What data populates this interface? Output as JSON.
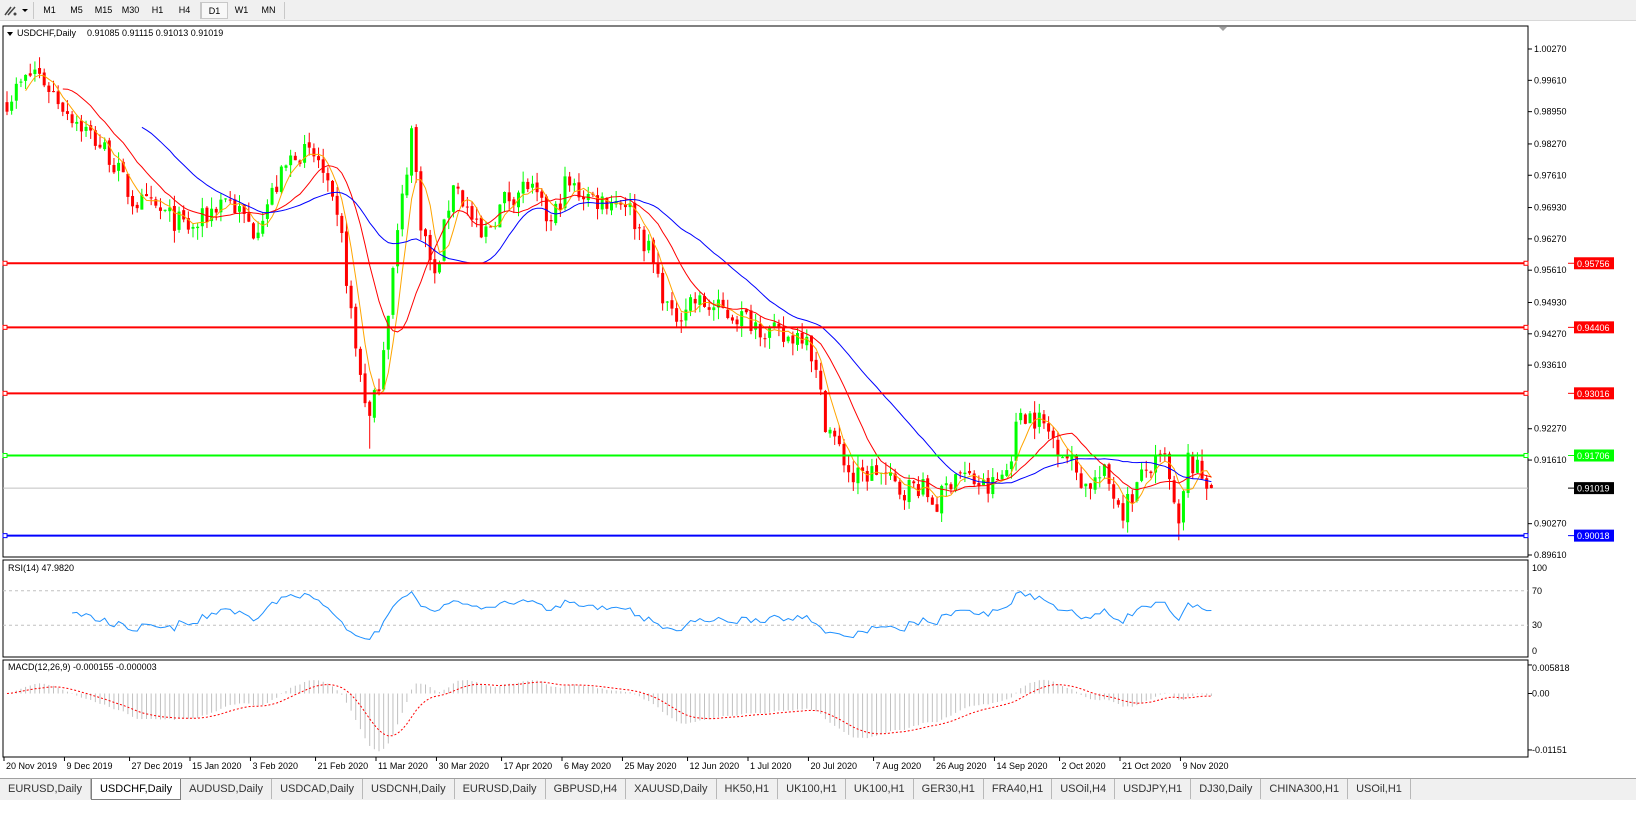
{
  "toolbar": {
    "tools": [
      {
        "icon": "draw-tool-icon"
      },
      {
        "icon": "chevron-down-icon"
      }
    ],
    "timeframes": [
      "M1",
      "M5",
      "M15",
      "M30",
      "H1",
      "H4",
      "D1",
      "W1",
      "MN"
    ],
    "active_timeframe": "D1"
  },
  "chart": {
    "symbol_title": "USDCHF,Daily",
    "ohlc": "0.91085 0.91115 0.91013 0.91019",
    "current_price": "0.91019",
    "price_ticks": [
      "1.00270",
      "0.99610",
      "0.98950",
      "0.98270",
      "0.97610",
      "0.96930",
      "0.96270",
      "0.95610",
      "0.94930",
      "0.94270",
      "0.93610",
      "0.92270",
      "0.91610",
      "0.90270",
      "0.89610"
    ],
    "hlines": [
      {
        "price": "0.95756",
        "color": "#ff0000"
      },
      {
        "price": "0.94406",
        "color": "#ff0000"
      },
      {
        "price": "0.93016",
        "color": "#ff0000"
      },
      {
        "price": "0.91706",
        "color": "#00ff00"
      },
      {
        "price": "0.90018",
        "color": "#0000ff"
      }
    ],
    "colors": {
      "bull": "#00ff00",
      "bear": "#ff0000",
      "ma_fast": "#ffa500",
      "ma_mid": "#ff0000",
      "ma_slow": "#0000ff",
      "rsi": "#1e90ff",
      "macd_signal": "#ff0000",
      "macd_hist": "#c0c0c0"
    },
    "date_labels": [
      "20 Nov 2019",
      "9 Dec 2019",
      "27 Dec 2019",
      "15 Jan 2020",
      "3 Feb 2020",
      "21 Feb 2020",
      "11 Mar 2020",
      "30 Mar 2020",
      "17 Apr 2020",
      "6 May 2020",
      "25 May 2020",
      "12 Jun 2020",
      "1 Jul 2020",
      "20 Jul 2020",
      "7 Aug 2020",
      "26 Aug 2020",
      "14 Sep 2020",
      "2 Oct 2020",
      "21 Oct 2020",
      "9 Nov 2020"
    ]
  },
  "rsi": {
    "label": "RSI(14) 47.9820",
    "ticks": [
      "100",
      "70",
      "30",
      "0"
    ]
  },
  "macd": {
    "label": "MACD(12,26,9) -0.000155 -0.000003",
    "ticks": [
      "0.005818",
      "0.00",
      "-0.01151"
    ]
  },
  "chart_data": {
    "type": "candlestick",
    "symbol": "USDCHF",
    "timeframe": "Daily",
    "last_candle": {
      "open": 0.91085,
      "high": 0.91115,
      "low": 0.91013,
      "close": 0.91019
    },
    "ylim": [
      0.8961,
      1.0027
    ],
    "approx_close_path": [
      [
        "20 Nov 2019",
        0.992
      ],
      [
        "28 Nov 2019",
        0.9983
      ],
      [
        "9 Dec 2019",
        0.9898
      ],
      [
        "20 Dec 2019",
        0.9804
      ],
      [
        "27 Dec 2019",
        0.9709
      ],
      [
        "3 Jan 2020",
        0.9688
      ],
      [
        "15 Jan 2020",
        0.9646
      ],
      [
        "24 Jan 2020",
        0.9719
      ],
      [
        "3 Feb 2020",
        0.9646
      ],
      [
        "14 Feb 2020",
        0.9814
      ],
      [
        "21 Feb 2020",
        0.9793
      ],
      [
        "28 Feb 2020",
        0.9625
      ],
      [
        "4 Mar 2020",
        0.9393
      ],
      [
        "9 Mar 2020",
        0.9245
      ],
      [
        "11 Mar 2020",
        0.933
      ],
      [
        "16 Mar 2020",
        0.9561
      ],
      [
        "20 Mar 2020",
        0.9856
      ],
      [
        "24 Mar 2020",
        0.9667
      ],
      [
        "27 Mar 2020",
        0.954
      ],
      [
        "2 Apr 2020",
        0.9751
      ],
      [
        "10 Apr 2020",
        0.9625
      ],
      [
        "17 Apr 2020",
        0.9709
      ],
      [
        "24 Apr 2020",
        0.9741
      ],
      [
        "1 May 2020",
        0.9656
      ],
      [
        "6 May 2020",
        0.9741
      ],
      [
        "15 May 2020",
        0.9709
      ],
      [
        "25 May 2020",
        0.9709
      ],
      [
        "1 Jun 2020",
        0.9603
      ],
      [
        "8 Jun 2020",
        0.9456
      ],
      [
        "12 Jun 2020",
        0.9498
      ],
      [
        "22 Jun 2020",
        0.9477
      ],
      [
        "1 Jul 2020",
        0.9456
      ],
      [
        "10 Jul 2020",
        0.9414
      ],
      [
        "17 Jul 2020",
        0.9435
      ],
      [
        "23 Jul 2020",
        0.9245
      ],
      [
        "31 Jul 2020",
        0.9119
      ],
      [
        "7 Aug 2020",
        0.914
      ],
      [
        "14 Aug 2020",
        0.9098
      ],
      [
        "20 Aug 2020",
        0.9108
      ],
      [
        "26 Aug 2020",
        0.9066
      ],
      [
        "1 Sep 2020",
        0.914
      ],
      [
        "10 Sep 2020",
        0.9098
      ],
      [
        "16 Sep 2020",
        0.914
      ],
      [
        "21 Sep 2020",
        0.9266
      ],
      [
        "25 Sep 2020",
        0.9245
      ],
      [
        "2 Oct 2020",
        0.9182
      ],
      [
        "9 Oct 2020",
        0.9108
      ],
      [
        "15 Oct 2020",
        0.9129
      ],
      [
        "21 Oct 2020",
        0.9056
      ],
      [
        "28 Oct 2020",
        0.914
      ],
      [
        "3 Nov 2020",
        0.9161
      ],
      [
        "6 Nov 2020",
        0.901
      ],
      [
        "10 Nov 2020",
        0.9161
      ],
      [
        "17 Nov 2020",
        0.9102
      ]
    ],
    "rsi_levels": [
      70,
      30
    ],
    "rsi_range": [
      0,
      100
    ],
    "macd_range": [
      -0.01151,
      0.005818
    ]
  },
  "tabs": {
    "items": [
      "EURUSD,Daily",
      "USDCHF,Daily",
      "AUDUSD,Daily",
      "USDCAD,Daily",
      "USDCNH,Daily",
      "EURUSD,Daily",
      "GBPUSD,H4",
      "XAUUSD,Daily",
      "HK50,H1",
      "UK100,H1",
      "UK100,H1",
      "GER30,H1",
      "FRA40,H1",
      "USOil,H4",
      "USDJPY,H1",
      "DJ30,Daily",
      "CHINA300,H1",
      "USOil,H1"
    ],
    "active": 1
  }
}
